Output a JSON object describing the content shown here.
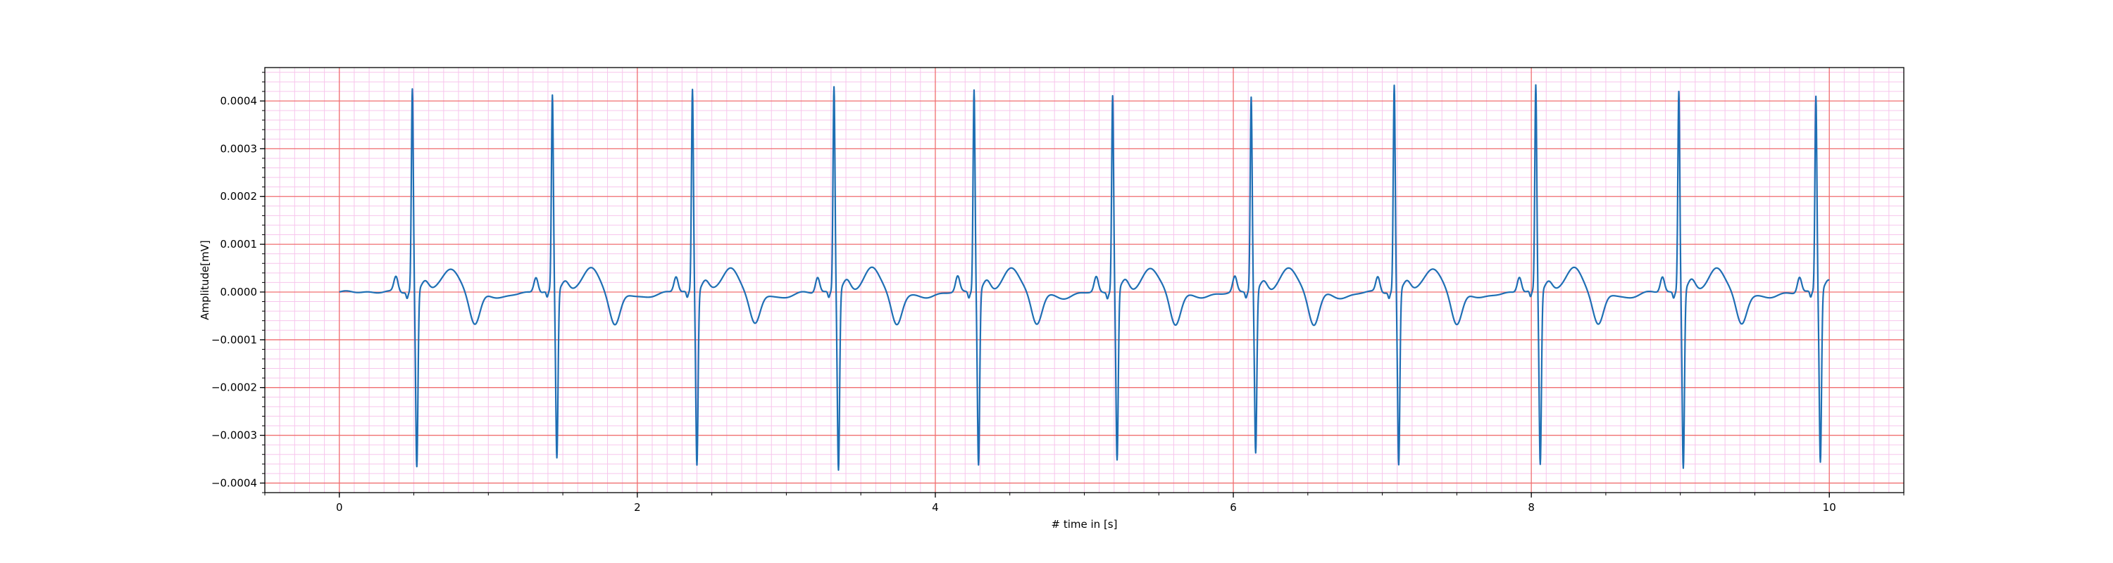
{
  "chart_data": {
    "type": "line",
    "title": "",
    "xlabel": "# time in [s]",
    "ylabel": "Amplitude[mV]",
    "xlim": [
      -0.5,
      10.5
    ],
    "ylim": [
      -0.00042,
      0.00047
    ],
    "x_ticks": [
      0,
      2,
      4,
      6,
      8,
      10
    ],
    "x_tick_labels": [
      "0",
      "2",
      "4",
      "6",
      "8",
      "10"
    ],
    "y_ticks": [
      0.0004,
      0.0003,
      0.0002,
      0.0001,
      0.0,
      -0.0001,
      -0.0002,
      -0.0003,
      -0.0004
    ],
    "y_tick_labels": [
      "0.0004",
      "0.0003",
      "0.0002",
      "0.0001",
      "0.0000",
      "−0.0001",
      "−0.0002",
      "−0.0003",
      "−0.0004"
    ],
    "grid": {
      "major": true,
      "minor": true,
      "major_color": "#f07070",
      "minor_color": "#f7c6ec"
    },
    "line_color": "#1f6fb4",
    "legend": "none",
    "series": [
      {
        "x_start": 0.0,
        "x_end": 10.0,
        "beat_times": [
          0.49,
          1.43,
          2.37,
          3.32,
          4.26,
          5.19,
          6.12,
          7.08,
          8.03,
          8.99,
          9.91
        ],
        "r_peaks": [
          0.000425,
          0.00041,
          0.000425,
          0.00043,
          0.000425,
          0.000412,
          0.000408,
          0.000432,
          0.000432,
          0.000422,
          0.00041
        ],
        "s_troughs": [
          -0.000368,
          -0.00035,
          -0.000362,
          -0.000375,
          -0.000363,
          -0.000355,
          -0.00034,
          -0.000365,
          -0.000362,
          -0.00037,
          -0.000358
        ],
        "p_wave_amplitude": 3.2e-05,
        "t_wave_amplitude": 5e-05,
        "post_t_dip": -6.8e-05
      }
    ]
  }
}
